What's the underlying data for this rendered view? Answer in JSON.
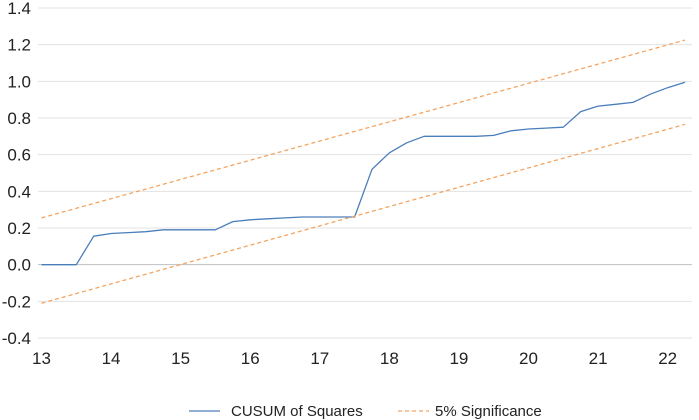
{
  "chart_data": {
    "type": "line",
    "title": "",
    "xlabel": "",
    "ylabel": "",
    "xlim": [
      12.95,
      22.35
    ],
    "ylim": [
      -0.4,
      1.4
    ],
    "x_ticks": [
      13,
      14,
      15,
      16,
      17,
      18,
      19,
      20,
      21,
      22
    ],
    "y_ticks": [
      1.4,
      1.2,
      1.0,
      0.8,
      0.6,
      0.4,
      0.2,
      0.0,
      -0.2,
      -0.4
    ],
    "y_tick_labels": [
      "1.4",
      "1.2",
      "1.0",
      "0.8",
      "0.6",
      "0.4",
      "0.2",
      "0.0",
      "-0.2",
      "-0.4"
    ],
    "x_tick_labels": [
      "13",
      "14",
      "15",
      "16",
      "17",
      "18",
      "19",
      "20",
      "21",
      "22"
    ],
    "grid": "horizontal",
    "legend_position": "bottom",
    "series": [
      {
        "name": "CUSUM of Squares",
        "color": "#4a7ebb",
        "style": "solid",
        "x": [
          13.0,
          13.25,
          13.5,
          13.75,
          14.0,
          14.25,
          14.5,
          14.75,
          15.0,
          15.25,
          15.5,
          15.75,
          16.0,
          16.25,
          16.5,
          16.75,
          17.0,
          17.25,
          17.5,
          17.75,
          18.0,
          18.25,
          18.5,
          18.75,
          19.0,
          19.25,
          19.5,
          19.75,
          20.0,
          20.25,
          20.5,
          20.75,
          21.0,
          21.25,
          21.5,
          21.75,
          22.0,
          22.25
        ],
        "y": [
          0.0,
          0.0,
          0.0,
          0.155,
          0.17,
          0.175,
          0.18,
          0.19,
          0.19,
          0.19,
          0.19,
          0.235,
          0.245,
          0.25,
          0.255,
          0.26,
          0.26,
          0.26,
          0.26,
          0.52,
          0.61,
          0.665,
          0.7,
          0.7,
          0.7,
          0.7,
          0.705,
          0.73,
          0.74,
          0.745,
          0.75,
          0.835,
          0.865,
          0.875,
          0.885,
          0.93,
          0.965,
          0.995
        ]
      },
      {
        "name": "5% Significance",
        "color": "#f4a460",
        "style": "dashed",
        "x": [
          13.0,
          22.25
        ],
        "y": [
          0.255,
          1.225
        ]
      },
      {
        "name": "",
        "color": "#f4a460",
        "style": "dashed",
        "legend": false,
        "x": [
          13.0,
          22.25
        ],
        "y": [
          -0.21,
          0.765
        ]
      }
    ],
    "legend": [
      {
        "label": "CUSUM of Squares",
        "color": "#4a7ebb",
        "style": "solid"
      },
      {
        "label": "5% Significance",
        "color": "#f4a460",
        "style": "dashed"
      }
    ]
  }
}
